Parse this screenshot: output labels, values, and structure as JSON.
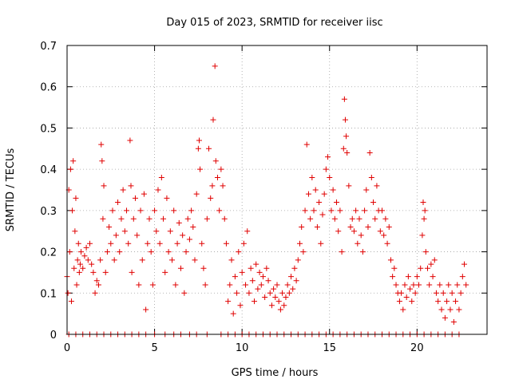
{
  "chart_data": {
    "type": "scatter",
    "title": "Day 015 of 2023, SRMTID for receiver iisc",
    "xlabel": "GPS time / hours",
    "ylabel": "SRMTID / TECUs",
    "xlim": [
      0,
      24
    ],
    "ylim": [
      0,
      0.7
    ],
    "xticks": [
      0,
      5,
      10,
      15,
      20
    ],
    "xtick_labels": [
      "0",
      "5",
      "10",
      "15",
      "20"
    ],
    "yticks": [
      0,
      0.1,
      0.2,
      0.3,
      0.4,
      0.5,
      0.6,
      0.7
    ],
    "ytick_labels": [
      "0",
      "0.1",
      "0.2",
      "0.3",
      "0.4",
      "0.5",
      "0.6",
      "0.7"
    ],
    "grid": true,
    "marker": "+",
    "marker_color": "#e00000",
    "series": [
      {
        "name": "SRMTID",
        "points": [
          [
            0.0,
            0.14
          ],
          [
            0.05,
            0.1
          ],
          [
            0.1,
            0.35
          ],
          [
            0.15,
            0.2
          ],
          [
            0.2,
            0.4
          ],
          [
            0.25,
            0.08
          ],
          [
            0.3,
            0.3
          ],
          [
            0.35,
            0.42
          ],
          [
            0.4,
            0.16
          ],
          [
            0.45,
            0.25
          ],
          [
            0.5,
            0.33
          ],
          [
            0.55,
            0.12
          ],
          [
            0.6,
            0.18
          ],
          [
            0.65,
            0.22
          ],
          [
            0.7,
            0.15
          ],
          [
            0.75,
            0.17
          ],
          [
            0.8,
            0.2
          ],
          [
            0.9,
            0.16
          ],
          [
            1.0,
            0.19
          ],
          [
            1.1,
            0.21
          ],
          [
            1.2,
            0.18
          ],
          [
            1.3,
            0.22
          ],
          [
            1.4,
            0.17
          ],
          [
            1.5,
            0.15
          ],
          [
            1.6,
            0.1
          ],
          [
            1.7,
            0.13
          ],
          [
            1.8,
            0.12
          ],
          [
            1.9,
            0.18
          ],
          [
            1.95,
            0.46
          ],
          [
            2.0,
            0.42
          ],
          [
            2.05,
            0.28
          ],
          [
            2.1,
            0.36
          ],
          [
            2.2,
            0.15
          ],
          [
            2.3,
            0.2
          ],
          [
            2.4,
            0.26
          ],
          [
            2.5,
            0.22
          ],
          [
            2.6,
            0.3
          ],
          [
            2.7,
            0.18
          ],
          [
            2.8,
            0.24
          ],
          [
            2.9,
            0.32
          ],
          [
            3.0,
            0.2
          ],
          [
            3.1,
            0.28
          ],
          [
            3.2,
            0.35
          ],
          [
            3.3,
            0.25
          ],
          [
            3.4,
            0.3
          ],
          [
            3.5,
            0.22
          ],
          [
            3.6,
            0.47
          ],
          [
            3.65,
            0.36
          ],
          [
            3.7,
            0.15
          ],
          [
            3.8,
            0.28
          ],
          [
            3.9,
            0.33
          ],
          [
            4.0,
            0.24
          ],
          [
            4.1,
            0.12
          ],
          [
            4.2,
            0.3
          ],
          [
            4.3,
            0.18
          ],
          [
            4.4,
            0.34
          ],
          [
            4.5,
            0.06
          ],
          [
            4.6,
            0.22
          ],
          [
            4.7,
            0.28
          ],
          [
            4.8,
            0.2
          ],
          [
            4.9,
            0.12
          ],
          [
            5.0,
            0.3
          ],
          [
            5.1,
            0.25
          ],
          [
            5.2,
            0.35
          ],
          [
            5.3,
            0.22
          ],
          [
            5.4,
            0.38
          ],
          [
            5.5,
            0.28
          ],
          [
            5.6,
            0.15
          ],
          [
            5.7,
            0.33
          ],
          [
            5.8,
            0.2
          ],
          [
            5.9,
            0.25
          ],
          [
            6.0,
            0.18
          ],
          [
            6.1,
            0.3
          ],
          [
            6.2,
            0.12
          ],
          [
            6.3,
            0.22
          ],
          [
            6.4,
            0.27
          ],
          [
            6.5,
            0.16
          ],
          [
            6.6,
            0.24
          ],
          [
            6.7,
            0.1
          ],
          [
            6.8,
            0.2
          ],
          [
            6.9,
            0.28
          ],
          [
            7.0,
            0.23
          ],
          [
            7.1,
            0.3
          ],
          [
            7.2,
            0.26
          ],
          [
            7.3,
            0.18
          ],
          [
            7.4,
            0.34
          ],
          [
            7.5,
            0.45
          ],
          [
            7.55,
            0.47
          ],
          [
            7.6,
            0.4
          ],
          [
            7.7,
            0.22
          ],
          [
            7.8,
            0.16
          ],
          [
            7.9,
            0.12
          ],
          [
            8.0,
            0.28
          ],
          [
            8.1,
            0.45
          ],
          [
            8.2,
            0.33
          ],
          [
            8.3,
            0.36
          ],
          [
            8.35,
            0.52
          ],
          [
            8.45,
            0.65
          ],
          [
            8.5,
            0.42
          ],
          [
            8.6,
            0.38
          ],
          [
            8.7,
            0.3
          ],
          [
            8.8,
            0.4
          ],
          [
            8.9,
            0.36
          ],
          [
            9.0,
            0.28
          ],
          [
            9.1,
            0.22
          ],
          [
            9.2,
            0.08
          ],
          [
            9.3,
            0.12
          ],
          [
            9.4,
            0.18
          ],
          [
            9.5,
            0.05
          ],
          [
            9.6,
            0.14
          ],
          [
            9.7,
            0.1
          ],
          [
            9.8,
            0.2
          ],
          [
            9.9,
            0.07
          ],
          [
            10.0,
            0.15
          ],
          [
            10.1,
            0.22
          ],
          [
            10.2,
            0.12
          ],
          [
            10.3,
            0.25
          ],
          [
            10.4,
            0.1
          ],
          [
            10.5,
            0.16
          ],
          [
            10.6,
            0.13
          ],
          [
            10.7,
            0.08
          ],
          [
            10.8,
            0.17
          ],
          [
            10.9,
            0.11
          ],
          [
            11.0,
            0.15
          ],
          [
            11.1,
            0.12
          ],
          [
            11.2,
            0.14
          ],
          [
            11.3,
            0.09
          ],
          [
            11.4,
            0.16
          ],
          [
            11.5,
            0.13
          ],
          [
            11.6,
            0.1
          ],
          [
            11.7,
            0.07
          ],
          [
            11.8,
            0.11
          ],
          [
            11.9,
            0.09
          ],
          [
            12.0,
            0.12
          ],
          [
            12.1,
            0.08
          ],
          [
            12.2,
            0.06
          ],
          [
            12.3,
            0.1
          ],
          [
            12.4,
            0.07
          ],
          [
            12.5,
            0.09
          ],
          [
            12.6,
            0.12
          ],
          [
            12.7,
            0.1
          ],
          [
            12.8,
            0.14
          ],
          [
            12.9,
            0.11
          ],
          [
            13.0,
            0.16
          ],
          [
            13.1,
            0.13
          ],
          [
            13.2,
            0.18
          ],
          [
            13.3,
            0.22
          ],
          [
            13.4,
            0.26
          ],
          [
            13.5,
            0.2
          ],
          [
            13.6,
            0.3
          ],
          [
            13.7,
            0.46
          ],
          [
            13.8,
            0.34
          ],
          [
            13.9,
            0.28
          ],
          [
            14.0,
            0.38
          ],
          [
            14.1,
            0.3
          ],
          [
            14.2,
            0.35
          ],
          [
            14.3,
            0.26
          ],
          [
            14.4,
            0.32
          ],
          [
            14.5,
            0.22
          ],
          [
            14.6,
            0.29
          ],
          [
            14.7,
            0.34
          ],
          [
            14.8,
            0.4
          ],
          [
            14.9,
            0.43
          ],
          [
            15.0,
            0.38
          ],
          [
            15.1,
            0.3
          ],
          [
            15.2,
            0.35
          ],
          [
            15.3,
            0.28
          ],
          [
            15.4,
            0.32
          ],
          [
            15.5,
            0.25
          ],
          [
            15.6,
            0.3
          ],
          [
            15.7,
            0.2
          ],
          [
            15.8,
            0.45
          ],
          [
            15.85,
            0.57
          ],
          [
            15.9,
            0.52
          ],
          [
            15.95,
            0.48
          ],
          [
            16.0,
            0.44
          ],
          [
            16.1,
            0.36
          ],
          [
            16.2,
            0.26
          ],
          [
            16.3,
            0.28
          ],
          [
            16.4,
            0.25
          ],
          [
            16.5,
            0.3
          ],
          [
            16.6,
            0.22
          ],
          [
            16.7,
            0.28
          ],
          [
            16.8,
            0.24
          ],
          [
            16.9,
            0.2
          ],
          [
            17.0,
            0.3
          ],
          [
            17.1,
            0.35
          ],
          [
            17.2,
            0.26
          ],
          [
            17.3,
            0.44
          ],
          [
            17.4,
            0.38
          ],
          [
            17.5,
            0.32
          ],
          [
            17.6,
            0.28
          ],
          [
            17.7,
            0.36
          ],
          [
            17.8,
            0.3
          ],
          [
            17.9,
            0.25
          ],
          [
            18.0,
            0.3
          ],
          [
            18.1,
            0.24
          ],
          [
            18.2,
            0.28
          ],
          [
            18.3,
            0.22
          ],
          [
            18.4,
            0.26
          ],
          [
            18.5,
            0.18
          ],
          [
            18.6,
            0.14
          ],
          [
            18.7,
            0.16
          ],
          [
            18.8,
            0.12
          ],
          [
            18.9,
            0.1
          ],
          [
            19.0,
            0.08
          ],
          [
            19.1,
            0.1
          ],
          [
            19.2,
            0.06
          ],
          [
            19.3,
            0.12
          ],
          [
            19.4,
            0.09
          ],
          [
            19.5,
            0.14
          ],
          [
            19.6,
            0.11
          ],
          [
            19.7,
            0.08
          ],
          [
            19.8,
            0.12
          ],
          [
            19.9,
            0.1
          ],
          [
            20.0,
            0.14
          ],
          [
            20.1,
            0.12
          ],
          [
            20.2,
            0.16
          ],
          [
            20.3,
            0.24
          ],
          [
            20.35,
            0.32
          ],
          [
            20.4,
            0.28
          ],
          [
            20.45,
            0.3
          ],
          [
            20.5,
            0.2
          ],
          [
            20.6,
            0.16
          ],
          [
            20.7,
            0.12
          ],
          [
            20.8,
            0.17
          ],
          [
            20.9,
            0.14
          ],
          [
            21.0,
            0.18
          ],
          [
            21.1,
            0.1
          ],
          [
            21.2,
            0.08
          ],
          [
            21.3,
            0.12
          ],
          [
            21.4,
            0.06
          ],
          [
            21.5,
            0.1
          ],
          [
            21.6,
            0.04
          ],
          [
            21.7,
            0.08
          ],
          [
            21.8,
            0.12
          ],
          [
            21.9,
            0.06
          ],
          [
            22.0,
            0.1
          ],
          [
            22.1,
            0.03
          ],
          [
            22.2,
            0.08
          ],
          [
            22.3,
            0.12
          ],
          [
            22.4,
            0.06
          ],
          [
            22.5,
            0.1
          ],
          [
            22.6,
            0.14
          ],
          [
            22.7,
            0.17
          ],
          [
            22.8,
            0.12
          ]
        ],
        "zero_points_x": [
          0.1,
          0.5,
          0.9,
          1.3,
          1.7,
          2.1,
          2.5,
          2.9,
          3.3,
          3.7,
          4.1,
          4.5,
          5.0,
          5.6,
          6.1,
          6.5,
          7.0,
          7.4,
          8.0,
          8.8,
          9.2,
          9.6,
          10.0,
          10.4,
          10.8,
          11.2,
          11.6,
          12.0,
          12.4,
          12.8,
          13.2,
          13.6,
          14.0,
          14.4,
          14.8,
          15.2,
          15.6,
          16.0,
          16.4,
          16.8,
          17.2,
          17.6,
          18.0,
          18.4,
          18.8,
          19.2,
          19.6,
          20.0,
          20.4,
          20.8,
          21.2,
          21.6,
          22.0,
          22.4
        ]
      }
    ]
  }
}
